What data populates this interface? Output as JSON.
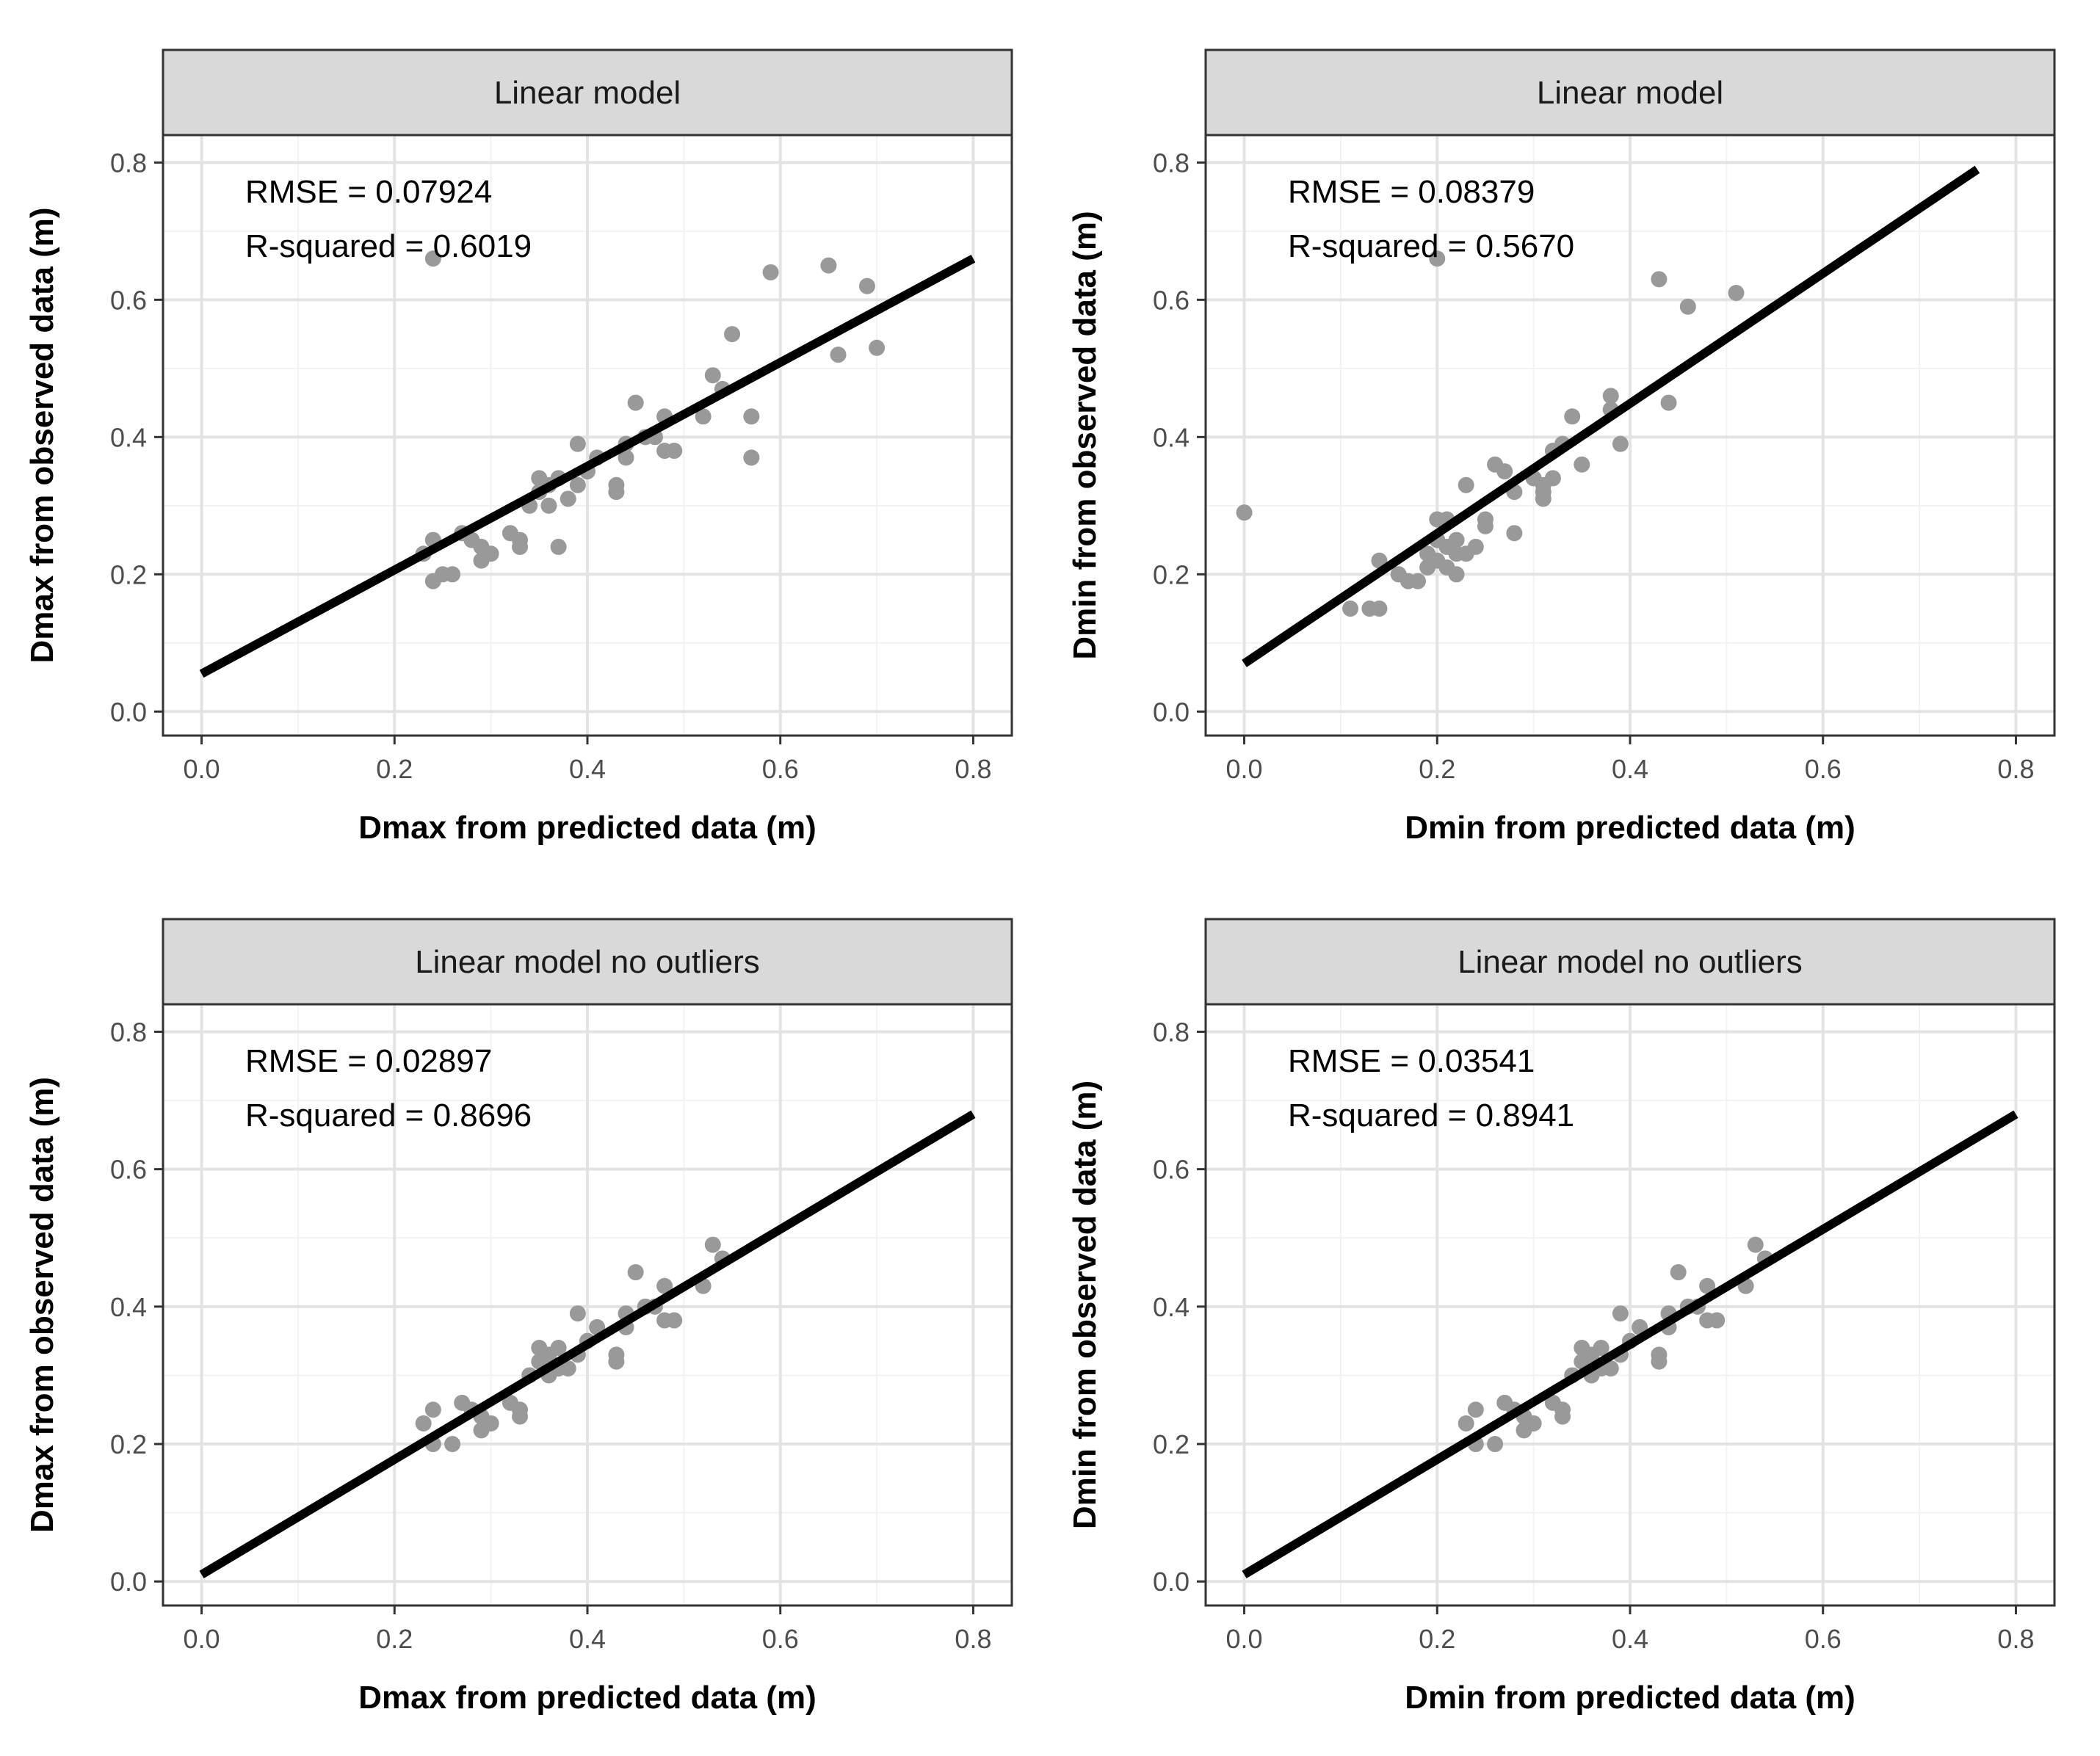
{
  "chart_data": [
    {
      "type": "scatter",
      "title": "Linear model",
      "xlabel": "Dmax from predicted data (m)",
      "ylabel": "Dmax from observed data (m)",
      "xlim": [
        -0.04,
        0.84
      ],
      "ylim": [
        -0.035,
        0.84
      ],
      "xticks": [
        "0.0",
        "0.2",
        "0.4",
        "0.6",
        "0.8"
      ],
      "yticks": [
        "0.0",
        "0.2",
        "0.4",
        "0.6",
        "0.8"
      ],
      "annotations": [
        "RMSE = 0.07924",
        "R-squared = 0.6019"
      ],
      "fit_line": {
        "x": [
          0.0,
          0.8
        ],
        "y": [
          0.055,
          0.66
        ]
      },
      "points": {
        "x": [
          0.24,
          0.23,
          0.25,
          0.24,
          0.26,
          0.27,
          0.28,
          0.29,
          0.29,
          0.3,
          0.32,
          0.33,
          0.33,
          0.34,
          0.35,
          0.35,
          0.36,
          0.36,
          0.37,
          0.37,
          0.38,
          0.39,
          0.39,
          0.4,
          0.41,
          0.43,
          0.43,
          0.44,
          0.44,
          0.45,
          0.46,
          0.47,
          0.48,
          0.48,
          0.49,
          0.52,
          0.53,
          0.54,
          0.55,
          0.57,
          0.57,
          0.59,
          0.65,
          0.66,
          0.69,
          0.7,
          0.24
        ],
        "y": [
          0.25,
          0.23,
          0.2,
          0.19,
          0.2,
          0.26,
          0.25,
          0.24,
          0.22,
          0.23,
          0.26,
          0.25,
          0.24,
          0.3,
          0.34,
          0.32,
          0.33,
          0.3,
          0.34,
          0.24,
          0.31,
          0.39,
          0.33,
          0.35,
          0.37,
          0.33,
          0.32,
          0.39,
          0.37,
          0.45,
          0.4,
          0.4,
          0.43,
          0.38,
          0.38,
          0.43,
          0.49,
          0.47,
          0.55,
          0.43,
          0.37,
          0.64,
          0.65,
          0.52,
          0.62,
          0.53,
          0.66
        ]
      }
    },
    {
      "type": "scatter",
      "title": "Linear model",
      "xlabel": "Dmin from predicted data (m)",
      "ylabel": "Dmin from observed data (m)",
      "xlim": [
        -0.04,
        0.84
      ],
      "ylim": [
        -0.035,
        0.84
      ],
      "xticks": [
        "0.0",
        "0.2",
        "0.4",
        "0.6",
        "0.8"
      ],
      "yticks": [
        "0.0",
        "0.2",
        "0.4",
        "0.6",
        "0.8"
      ],
      "annotations": [
        "RMSE = 0.08379",
        "R-squared = 0.5670"
      ],
      "fit_line": {
        "x": [
          0.0,
          0.76
        ],
        "y": [
          0.07,
          0.79
        ]
      },
      "points": {
        "x": [
          0.0,
          0.11,
          0.13,
          0.14,
          0.14,
          0.16,
          0.17,
          0.18,
          0.19,
          0.2,
          0.2,
          0.2,
          0.21,
          0.21,
          0.22,
          0.22,
          0.23,
          0.23,
          0.24,
          0.25,
          0.25,
          0.26,
          0.27,
          0.28,
          0.28,
          0.3,
          0.31,
          0.31,
          0.32,
          0.32,
          0.34,
          0.35,
          0.38,
          0.38,
          0.39,
          0.43,
          0.44,
          0.46,
          0.51,
          0.2,
          0.21,
          0.22,
          0.19,
          0.31,
          0.33
        ],
        "y": [
          0.29,
          0.15,
          0.15,
          0.15,
          0.22,
          0.2,
          0.19,
          0.19,
          0.21,
          0.22,
          0.25,
          0.28,
          0.21,
          0.24,
          0.2,
          0.23,
          0.23,
          0.33,
          0.24,
          0.27,
          0.28,
          0.36,
          0.35,
          0.26,
          0.32,
          0.34,
          0.31,
          0.33,
          0.34,
          0.38,
          0.43,
          0.36,
          0.46,
          0.44,
          0.39,
          0.63,
          0.45,
          0.59,
          0.61,
          0.66,
          0.28,
          0.25,
          0.23,
          0.32,
          0.39
        ]
      }
    },
    {
      "type": "scatter",
      "title": "Linear model no outliers",
      "xlabel": "Dmax from predicted data (m)",
      "ylabel": "Dmax from observed data (m)",
      "xlim": [
        -0.04,
        0.84
      ],
      "ylim": [
        -0.035,
        0.84
      ],
      "xticks": [
        "0.0",
        "0.2",
        "0.4",
        "0.6",
        "0.8"
      ],
      "yticks": [
        "0.0",
        "0.2",
        "0.4",
        "0.6",
        "0.8"
      ],
      "annotations": [
        "RMSE = 0.02897",
        "R-squared = 0.8696"
      ],
      "fit_line": {
        "x": [
          0.0,
          0.8
        ],
        "y": [
          0.01,
          0.68
        ]
      },
      "points": {
        "x": [
          0.23,
          0.24,
          0.24,
          0.26,
          0.27,
          0.28,
          0.29,
          0.29,
          0.3,
          0.32,
          0.33,
          0.33,
          0.34,
          0.35,
          0.35,
          0.36,
          0.36,
          0.37,
          0.37,
          0.38,
          0.39,
          0.39,
          0.4,
          0.41,
          0.43,
          0.43,
          0.44,
          0.44,
          0.45,
          0.46,
          0.47,
          0.48,
          0.48,
          0.49,
          0.52,
          0.53,
          0.54
        ],
        "y": [
          0.23,
          0.25,
          0.2,
          0.2,
          0.26,
          0.25,
          0.24,
          0.22,
          0.23,
          0.26,
          0.25,
          0.24,
          0.3,
          0.34,
          0.32,
          0.33,
          0.3,
          0.34,
          0.31,
          0.31,
          0.39,
          0.33,
          0.35,
          0.37,
          0.33,
          0.32,
          0.39,
          0.37,
          0.45,
          0.4,
          0.4,
          0.43,
          0.38,
          0.38,
          0.43,
          0.49,
          0.47
        ]
      }
    },
    {
      "type": "scatter",
      "title": "Linear model no outliers",
      "xlabel": "Dmin from predicted data (m)",
      "ylabel": "Dmin from observed data (m)",
      "xlim": [
        -0.04,
        0.84
      ],
      "ylim": [
        -0.035,
        0.84
      ],
      "xticks": [
        "0.0",
        "0.2",
        "0.4",
        "0.6",
        "0.8"
      ],
      "yticks": [
        "0.0",
        "0.2",
        "0.4",
        "0.6",
        "0.8"
      ],
      "annotations": [
        "RMSE = 0.03541",
        "R-squared = 0.8941"
      ],
      "fit_line": {
        "x": [
          0.0,
          0.8
        ],
        "y": [
          0.01,
          0.68
        ]
      },
      "points": {
        "x": [
          0.23,
          0.24,
          0.24,
          0.26,
          0.27,
          0.28,
          0.29,
          0.29,
          0.3,
          0.32,
          0.33,
          0.33,
          0.34,
          0.35,
          0.35,
          0.36,
          0.36,
          0.37,
          0.37,
          0.38,
          0.39,
          0.39,
          0.4,
          0.41,
          0.43,
          0.43,
          0.44,
          0.44,
          0.45,
          0.46,
          0.47,
          0.48,
          0.48,
          0.49,
          0.52,
          0.53,
          0.54
        ],
        "y": [
          0.23,
          0.25,
          0.2,
          0.2,
          0.26,
          0.25,
          0.24,
          0.22,
          0.23,
          0.26,
          0.25,
          0.24,
          0.3,
          0.34,
          0.32,
          0.33,
          0.3,
          0.34,
          0.31,
          0.31,
          0.39,
          0.33,
          0.35,
          0.37,
          0.33,
          0.32,
          0.39,
          0.37,
          0.45,
          0.4,
          0.4,
          0.43,
          0.38,
          0.38,
          0.43,
          0.49,
          0.47
        ]
      }
    }
  ]
}
